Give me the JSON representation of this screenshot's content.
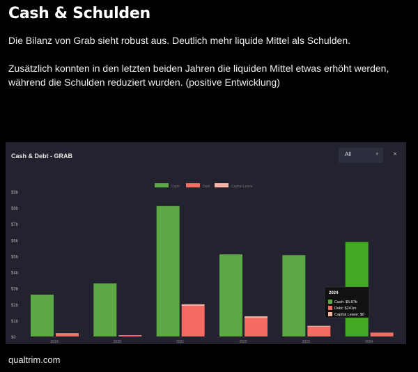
{
  "header": {
    "title": "Cash & Schulden",
    "paragraph1": "Die Bilanz von Grab sieht robust aus. Deutlich mehr liquide Mittel als Schulden.",
    "paragraph2": "Zusätzlich konnten in den letzten beiden Jahren die liquiden Mittel etwas erhöht werden, während die Schulden reduziert wurden. (positive Entwicklung)"
  },
  "card": {
    "title": "Cash & Debt - GRAB",
    "dropdown_value": "All",
    "dropdown_arrow": "▾",
    "close_label": "×"
  },
  "chart_data": {
    "type": "bar",
    "title": "Cash & Debt - GRAB",
    "categories": [
      "2019",
      "2020",
      "2021",
      "2022",
      "2023",
      "2024"
    ],
    "series": [
      {
        "name": "Cash",
        "color": "#5ca844",
        "values": [
          2.6,
          3.3,
          8.1,
          5.1,
          5.05,
          5.87
        ]
      },
      {
        "name": "Debt",
        "color": "#f56c63",
        "values": [
          0.15,
          0.05,
          1.9,
          1.15,
          0.6,
          0.241
        ]
      },
      {
        "name": "Capital Lease",
        "color": "#f7b3a3",
        "values": [
          0.05,
          0.03,
          0.1,
          0.1,
          0.06,
          0
        ]
      }
    ],
    "y_ticks": [
      "$0",
      "$1b",
      "$2b",
      "$3b",
      "$4b",
      "$5b",
      "$6b",
      "$7b",
      "$8b",
      "$9b"
    ],
    "ylim": [
      0,
      9
    ],
    "legend_position": "top-center",
    "highlight_color": "#43a923",
    "tooltip": {
      "year": "2024",
      "lines": [
        {
          "text": "Cash: $5.87b",
          "color": "#5ca844"
        },
        {
          "text": "Debt: $241m",
          "color": "#f56c63"
        },
        {
          "text": "Capital Lease: $0",
          "color": "#f7b3a3"
        }
      ]
    }
  },
  "footer": {
    "text": "qualtrim.com"
  }
}
